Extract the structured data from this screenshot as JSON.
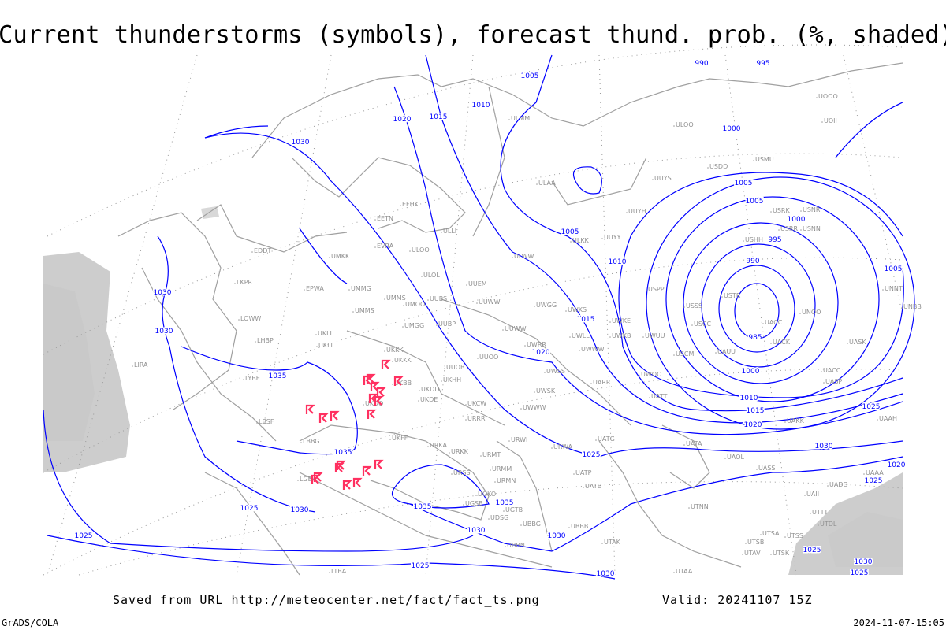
{
  "title": "Current thunderstorms (symbols), forecast thund. prob. (%, shaded)",
  "footer": {
    "saved": "Saved from URL http://meteocenter.net/fact/fact_ts.png",
    "valid": "Valid: 20241107 15Z",
    "software": "GrADS/COLA",
    "timestamp": "2024-11-07-15:05"
  },
  "colors": {
    "isobar": "#0000ff",
    "coastline": "#a0a0a0",
    "thunderstorm_symbol": "#ff3060",
    "probability_shading": "#c8c8c8",
    "grid": "#999999"
  },
  "legend_symbol": "thunderstorm-symbol",
  "isobar_labels": [
    "990",
    "995",
    "1005",
    "1010",
    "1015",
    "1020",
    "1030",
    "1000",
    "1005",
    "1005",
    "1000",
    "995",
    "990",
    "985",
    "1000",
    "1010",
    "1015",
    "1020",
    "1025",
    "1030",
    "1020",
    "1025",
    "1025",
    "1030",
    "1025",
    "1005",
    "1010",
    "1005",
    "1015",
    "1020",
    "1025",
    "1030",
    "1030",
    "1035",
    "1035",
    "1035",
    "1035",
    "1030",
    "1030",
    "1030",
    "1030",
    "1025",
    "1025",
    "1025"
  ],
  "stations": [
    "ULMM",
    "ULOO",
    "ULAA",
    "UUYS",
    "USDD",
    "USMU",
    "UOII",
    "UOOO",
    "UUYH",
    "UUYY",
    "ULKK",
    "USRK",
    "USNR",
    "USRR",
    "USNN",
    "USHH",
    "ULWW",
    "ULOL",
    "ULOO",
    "EVRA",
    "UMKK",
    "EDDT",
    "EPWA",
    "UMMG",
    "UMMS",
    "UMOO",
    "UUBS",
    "UUEM",
    "UUWW",
    "UWGG",
    "UWKS",
    "USPP",
    "USSS",
    "USTR",
    "USCC",
    "UNOO",
    "UACC",
    "UACK",
    "UASK",
    "UNNT",
    "UNBB",
    "UMGG",
    "UUBP",
    "UKLL",
    "UKLI",
    "LKPR",
    "LOWW",
    "LHBP",
    "LIRA",
    "LYBE",
    "LBSF",
    "LBBG",
    "LGBA",
    "UKKK",
    "UUOB",
    "UUOO",
    "UKHH",
    "UKDD",
    "UKDE",
    "UKOO",
    "UKFF",
    "URKA",
    "URKK",
    "URRR",
    "UKCW",
    "UWWW",
    "UWSS",
    "UWSK",
    "UARR",
    "UATT",
    "UWOO",
    "UWKE",
    "UWKB",
    "UWUU",
    "UWLL",
    "UWWW",
    "UWRR",
    "USCM",
    "UAUU",
    "UATG",
    "UATA",
    "UAOL",
    "UASS",
    "URWI",
    "URMT",
    "URWA",
    "URMM",
    "URMN",
    "URSS",
    "UATE",
    "UATP",
    "UGSB",
    "UGKO",
    "UGTB",
    "UBBG",
    "UDSG",
    "UBBN",
    "UBBB",
    "UTAK",
    "UTAA",
    "UTNN",
    "UTSA",
    "UTSB",
    "UTAV",
    "UTSK",
    "UTSS",
    "UTDL",
    "UTTT",
    "UAII",
    "UADD",
    "UAAA",
    "UAAH",
    "UACC",
    "UASP",
    "UAKK",
    "EETN",
    "EFHK",
    "ULLI",
    "UKBB",
    "UKKK",
    "LTBA",
    "UUWW",
    "UMMS"
  ]
}
